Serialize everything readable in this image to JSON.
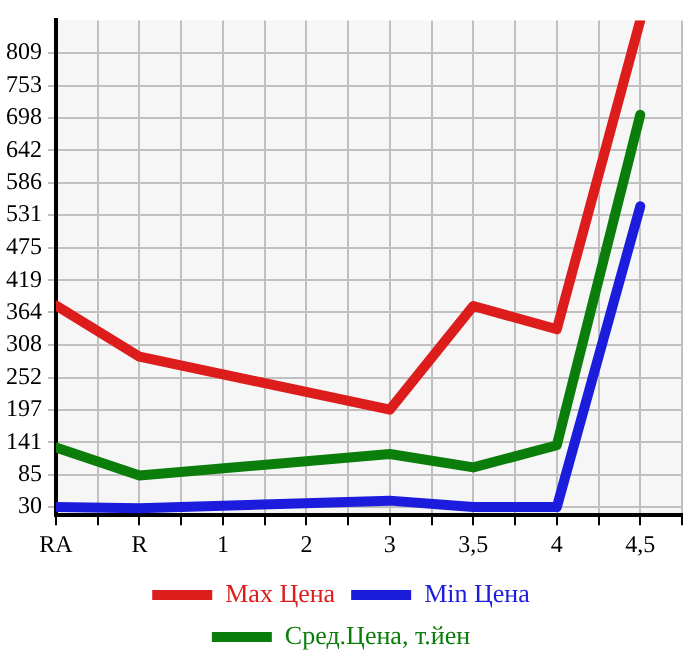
{
  "chart_data": {
    "type": "line",
    "categories": [
      "RA",
      "R",
      "1",
      "2",
      "3",
      "3,5",
      "4",
      "4,5"
    ],
    "series": [
      {
        "name": "Max Цена",
        "color": "#dd1c1c",
        "values": [
          376,
          288,
          null,
          null,
          197,
          375,
          335,
          865
        ]
      },
      {
        "name": "Min Цена",
        "color": "#1c1cdd",
        "values": [
          30,
          28,
          null,
          null,
          41,
          30,
          30,
          546
        ]
      },
      {
        "name": "Сред.Цена, т.йен",
        "color": "#0a7d0a",
        "values": [
          132,
          84,
          null,
          null,
          121,
          98,
          136,
          703
        ]
      }
    ],
    "ylim": [
      16,
      865
    ],
    "yticks": [
      30,
      85,
      141,
      197,
      252,
      308,
      364,
      419,
      475,
      531,
      586,
      642,
      698,
      753,
      809
    ],
    "grid": true,
    "legend": "bottom",
    "marker": "none",
    "line_style": "solid"
  }
}
